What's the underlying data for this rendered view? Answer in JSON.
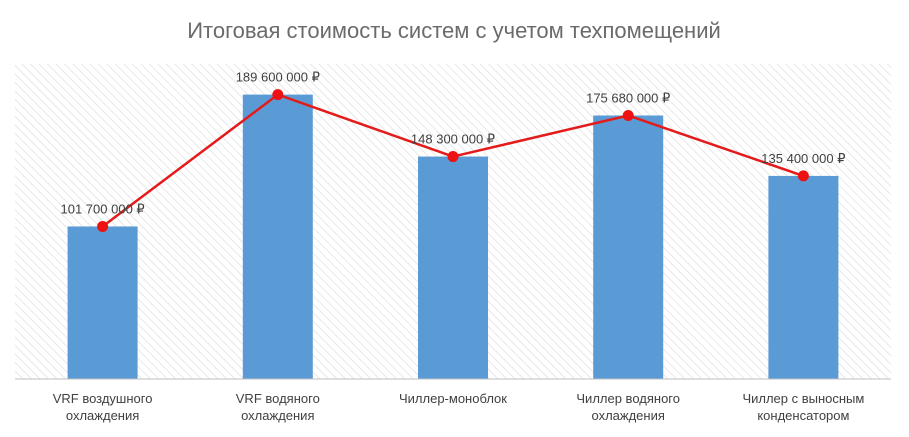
{
  "chart_data": {
    "type": "bar",
    "title": "Итоговая стоимость систем с учетом техпомещений",
    "categories": [
      [
        "VRF воздушного",
        "охлаждения"
      ],
      [
        "VRF водяного",
        "охлаждения"
      ],
      [
        "Чиллер-моноблок"
      ],
      [
        "Чиллер водяного",
        "охлаждения"
      ],
      [
        "Чиллер с выносным",
        "конденсатором"
      ]
    ],
    "values": [
      101700000,
      189600000,
      148300000,
      175680000,
      135400000
    ],
    "value_labels": [
      "101 700 000 ₽",
      "189 600 000 ₽",
      "148 300 000 ₽",
      "175 680 000 ₽",
      "135 400 000 ₽"
    ],
    "overlay_line": true,
    "ylim": [
      0,
      210000000
    ],
    "grid": false,
    "legend": "none",
    "colors": {
      "bar": "#5b9bd5",
      "line": "#e31b1b",
      "marker": "#ee1111",
      "axis": "#bfbfbf",
      "hatch": "#d9d9d9"
    }
  }
}
